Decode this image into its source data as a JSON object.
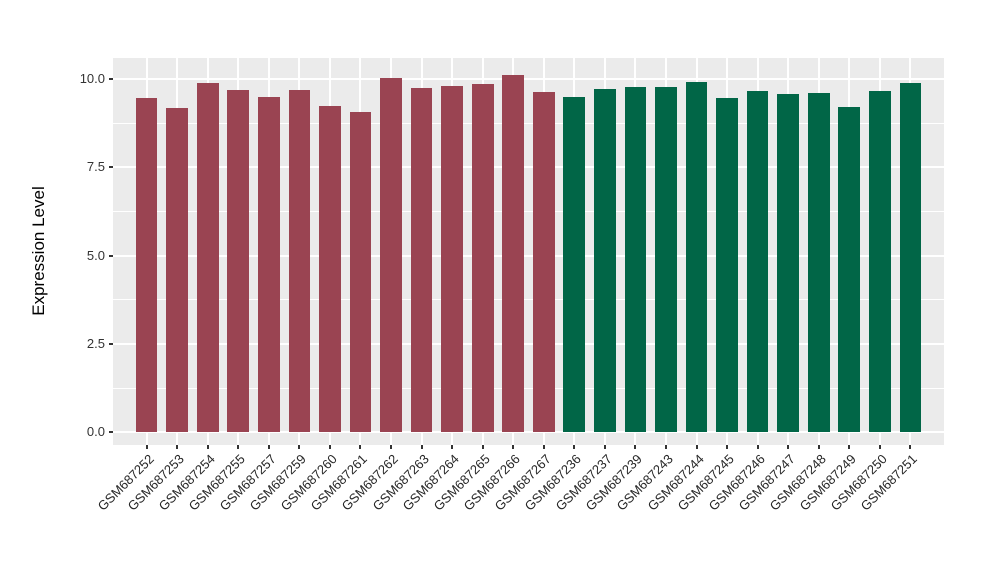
{
  "chart_data": {
    "type": "bar",
    "title": "",
    "xlabel": "",
    "ylabel": "Expression Level",
    "ylim": [
      -0.36,
      10.59
    ],
    "yticks": [
      0,
      2.5,
      5,
      7.5,
      10
    ],
    "ytick_labels": [
      "0.0",
      "2.5",
      "5.0",
      "7.5",
      "10.0"
    ],
    "yticks_minor": [
      1.25,
      3.75,
      6.25,
      8.75
    ],
    "grid": "white major and minor horizontal lines, white vertical line at each category center, on gray panel",
    "legend_position": "none",
    "x_label_angle": 45,
    "categories": [
      "GSM687252",
      "GSM687253",
      "GSM687254",
      "GSM687255",
      "GSM687257",
      "GSM687259",
      "GSM687260",
      "GSM687261",
      "GSM687262",
      "GSM687263",
      "GSM687264",
      "GSM687265",
      "GSM687266",
      "GSM687267",
      "GSM687236",
      "GSM687237",
      "GSM687239",
      "GSM687243",
      "GSM687244",
      "GSM687245",
      "GSM687246",
      "GSM687247",
      "GSM687248",
      "GSM687249",
      "GSM687250",
      "GSM687251"
    ],
    "values": [
      9.45,
      9.18,
      9.89,
      9.69,
      9.48,
      9.68,
      9.23,
      9.07,
      10.01,
      9.73,
      9.8,
      9.86,
      10.12,
      9.63,
      9.49,
      9.7,
      9.77,
      9.76,
      9.92,
      9.47,
      9.66,
      9.56,
      9.61,
      9.2,
      9.67,
      9.89
    ],
    "bar_groups": [
      "maroon",
      "maroon",
      "maroon",
      "maroon",
      "maroon",
      "maroon",
      "maroon",
      "maroon",
      "maroon",
      "maroon",
      "maroon",
      "maroon",
      "maroon",
      "maroon",
      "green",
      "green",
      "green",
      "green",
      "green",
      "green",
      "green",
      "green",
      "green",
      "green",
      "green",
      "green"
    ],
    "group_colors": {
      "maroon": "#9A4452",
      "green": "#016647"
    }
  },
  "colors": {
    "page_bg": "#FFFFFF",
    "panel_bg": "#EBEBEB",
    "gridline": "#FFFFFF",
    "axis_title": "#000000",
    "axis_tick_text": "#333333",
    "tick_mark": "#333333",
    "bar_maroon": "#9A4452",
    "bar_green": "#016647"
  }
}
